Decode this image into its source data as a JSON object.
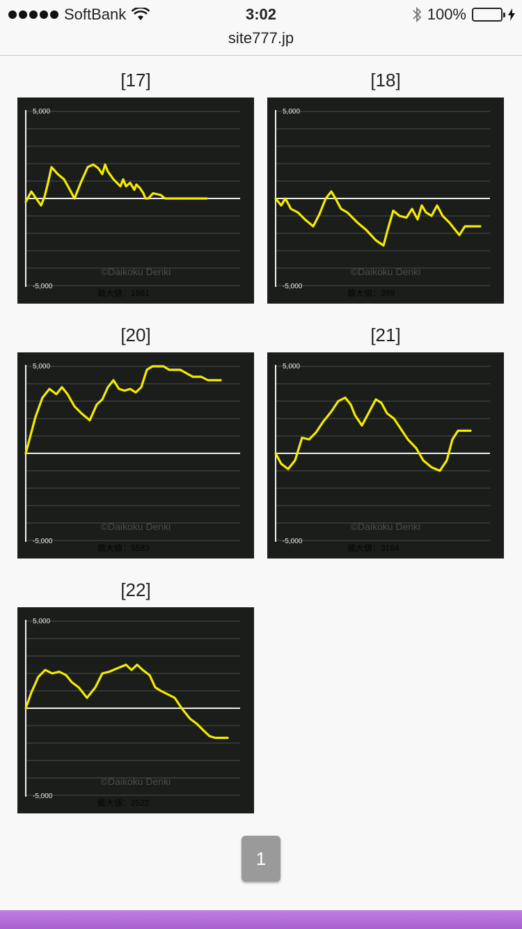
{
  "status_bar": {
    "carrier": "SoftBank",
    "time": "3:02",
    "battery": "100%",
    "battery_level": 1.0
  },
  "url_bar": {
    "domain": "site777.jp"
  },
  "charts": [
    {
      "label": "[17]",
      "y_top": "5,000",
      "y_bottom": "-5,000",
      "watermark": "©Daikoku Denki",
      "max_label": "最大値：1961",
      "line_color": "#f4ec00",
      "chart_data": {
        "type": "line",
        "ylim": [
          -5000,
          5000
        ],
        "x": [
          0,
          4,
          8,
          15,
          22,
          27,
          32,
          37,
          46,
          55,
          62,
          70,
          79,
          89,
          97,
          104,
          110,
          114,
          118,
          126,
          136,
          140,
          144,
          150,
          156,
          159,
          164,
          169,
          172,
          176,
          183,
          194,
          200,
          206,
          216,
          226,
          233,
          241,
          247,
          252,
          256,
          260
        ],
        "y": [
          -200,
          100,
          400,
          0,
          -400,
          100,
          900,
          1800,
          1400,
          1100,
          600,
          0,
          900,
          1800,
          1950,
          1750,
          1400,
          1950,
          1550,
          1100,
          700,
          1100,
          700,
          900,
          500,
          800,
          600,
          300,
          0,
          0,
          300,
          200,
          0,
          0,
          0,
          0,
          0,
          0,
          0,
          0,
          0,
          0
        ]
      }
    },
    {
      "label": "[18]",
      "y_top": "5,000",
      "y_bottom": "-5,000",
      "watermark": "©Daikoku Denki",
      "max_label": "最大値：399",
      "line_color": "#f4ec00",
      "chart_data": {
        "type": "line",
        "ylim": [
          -5000,
          5000
        ],
        "x": [
          0,
          8,
          14,
          22,
          32,
          42,
          54,
          63,
          72,
          80,
          86,
          94,
          103,
          118,
          130,
          144,
          155,
          161,
          169,
          178,
          188,
          196,
          204,
          210,
          216,
          224,
          232,
          240,
          250,
          264,
          272,
          282,
          288,
          294
        ],
        "y": [
          0,
          -400,
          0,
          -600,
          -800,
          -1200,
          -1600,
          -900,
          0,
          400,
          0,
          -600,
          -800,
          -1400,
          -1800,
          -2400,
          -2700,
          -1800,
          -700,
          -1000,
          -1100,
          -600,
          -1200,
          -400,
          -800,
          -1000,
          -400,
          -1000,
          -1400,
          -2100,
          -1600,
          -1600,
          -1600,
          -1600
        ]
      }
    },
    {
      "label": "[20]",
      "y_top": "5,000",
      "y_bottom": "-5,000",
      "watermark": "©Daikoku Denki",
      "max_label": "最大値：5583",
      "line_color": "#f4ec00",
      "chart_data": {
        "type": "line",
        "ylim": [
          -5000,
          5000
        ],
        "x": [
          0,
          6,
          14,
          24,
          34,
          44,
          52,
          60,
          70,
          80,
          92,
          102,
          110,
          118,
          126,
          134,
          142,
          150,
          158,
          166,
          174,
          182,
          190,
          198,
          206,
          214,
          222,
          240,
          252,
          262,
          270,
          276,
          280
        ],
        "y": [
          0,
          900,
          2100,
          3200,
          3700,
          3400,
          3800,
          3400,
          2700,
          2300,
          1900,
          2800,
          3100,
          3800,
          4200,
          3700,
          3600,
          3700,
          3500,
          3800,
          4800,
          5000,
          5000,
          5000,
          4800,
          4800,
          4800,
          4400,
          4400,
          4200,
          4200,
          4200,
          4200
        ]
      }
    },
    {
      "label": "[21]",
      "y_top": "5,000",
      "y_bottom": "-5,000",
      "watermark": "©Daikoku Denki",
      "max_label": "最大値：3184",
      "line_color": "#f4ec00",
      "chart_data": {
        "type": "line",
        "ylim": [
          -5000,
          5000
        ],
        "x": [
          0,
          8,
          18,
          28,
          38,
          48,
          58,
          68,
          80,
          90,
          100,
          108,
          114,
          124,
          136,
          144,
          152,
          160,
          170,
          180,
          190,
          202,
          212,
          224,
          236,
          246,
          254,
          262,
          270,
          276,
          280
        ],
        "y": [
          0,
          -600,
          -900,
          -400,
          900,
          800,
          1200,
          1800,
          2400,
          3000,
          3200,
          2800,
          2200,
          1600,
          2500,
          3100,
          2900,
          2300,
          2000,
          1400,
          800,
          300,
          -400,
          -800,
          -1000,
          -400,
          800,
          1300,
          1300,
          1300,
          1300
        ]
      }
    },
    {
      "label": "[22]",
      "y_top": "5,000",
      "y_bottom": "-5,000",
      "watermark": "©Daikoku Denki",
      "max_label": "最大値：2522",
      "line_color": "#f4ec00",
      "chart_data": {
        "type": "line",
        "ylim": [
          -5000,
          5000
        ],
        "x": [
          0,
          8,
          18,
          28,
          38,
          48,
          58,
          66,
          76,
          88,
          100,
          110,
          120,
          132,
          144,
          152,
          160,
          168,
          178,
          186,
          194,
          204,
          214,
          224,
          236,
          246,
          256,
          264,
          272,
          278,
          284,
          290
        ],
        "y": [
          0,
          900,
          1800,
          2200,
          2000,
          2100,
          1900,
          1500,
          1200,
          600,
          1200,
          2000,
          2100,
          2300,
          2500,
          2200,
          2500,
          2200,
          1900,
          1200,
          1000,
          800,
          600,
          0,
          -600,
          -900,
          -1300,
          -1600,
          -1700,
          -1700,
          -1700,
          -1700
        ]
      }
    }
  ],
  "pagination": {
    "current_page": "1"
  }
}
